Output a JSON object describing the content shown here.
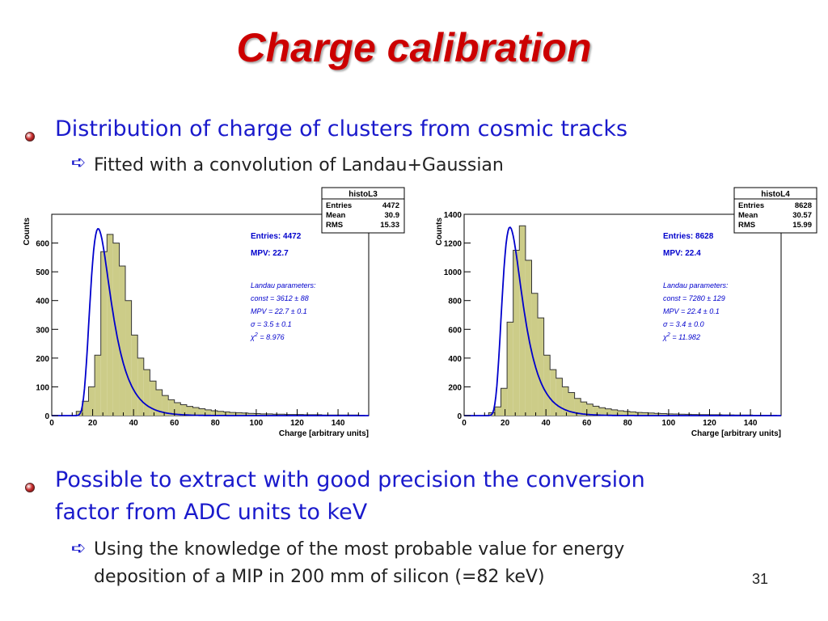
{
  "slide": {
    "title": "Charge calibration",
    "page_number": "31",
    "bullets": [
      {
        "text": "Distribution of charge of clusters from cosmic tracks",
        "sub": "Fitted with a convolution of Landau+Gaussian"
      },
      {
        "text": "Possible to extract with good precision the conversion factor from ADC units to keV",
        "text_line1": "Possible to extract with good precision the conversion",
        "text_line2": "factor from ADC units to keV",
        "sub_line1": "Using the knowledge of the most probable value for energy",
        "sub_line2": "deposition of a MIP in 200 mm of silicon (=82 keV)"
      }
    ]
  },
  "colors": {
    "title": "#cc0000",
    "bullet_text": "#1a1acc",
    "hist_fill": "#cccc88",
    "fit_line": "#0000cc",
    "annotation": "#0000cc"
  },
  "chart_data": [
    {
      "type": "bar",
      "name": "histoL3",
      "xlabel": "Charge  [arbitrary units]",
      "ylabel": "Counts",
      "xlim": [
        0,
        155
      ],
      "ylim": [
        0,
        700
      ],
      "xticks": [
        0,
        20,
        40,
        60,
        80,
        100,
        120,
        140
      ],
      "yticks": [
        0,
        100,
        200,
        300,
        400,
        500,
        600
      ],
      "bin_width": 3,
      "bin_start": 0,
      "values": [
        0,
        0,
        0,
        0,
        15,
        50,
        100,
        210,
        570,
        630,
        600,
        520,
        400,
        280,
        200,
        160,
        120,
        90,
        70,
        55,
        45,
        38,
        32,
        28,
        24,
        20,
        17,
        15,
        13,
        11,
        10,
        9,
        8,
        7,
        6,
        6,
        5,
        5,
        4,
        4,
        4,
        3,
        3,
        3,
        2,
        2,
        2,
        2,
        2,
        2,
        1
      ],
      "fit": {
        "name": "Landau+Gaussian",
        "mpv": 22.7,
        "sigma": 3.5,
        "peak": 650
      },
      "stats_box": {
        "title": "histoL3",
        "rows": [
          [
            "Entries",
            "4472"
          ],
          [
            "Mean",
            "30.9"
          ],
          [
            "RMS",
            "15.33"
          ]
        ]
      },
      "annotations": {
        "entries": "Entries: 4472",
        "mpv": "MPV:  22.7",
        "landau_header": "Landau parameters:",
        "const": "const = 3612 ± 88",
        "mpv_fit": "MPV = 22.7 ± 0.1",
        "sigma": "σ = 3.5 ± 0.1",
        "chi2": "χ",
        "chi2_val": " = 8.976"
      }
    },
    {
      "type": "bar",
      "name": "histoL4",
      "xlabel": "Charge  [arbitrary units]",
      "ylabel": "Counts",
      "xlim": [
        0,
        155
      ],
      "ylim": [
        0,
        1400
      ],
      "xticks": [
        0,
        20,
        40,
        60,
        80,
        100,
        120,
        140
      ],
      "yticks": [
        0,
        200,
        400,
        600,
        800,
        1000,
        1200,
        1400
      ],
      "bin_width": 3,
      "bin_start": 0,
      "values": [
        0,
        0,
        0,
        0,
        20,
        60,
        190,
        650,
        1150,
        1320,
        1080,
        850,
        680,
        420,
        320,
        260,
        200,
        160,
        120,
        95,
        80,
        65,
        55,
        47,
        40,
        34,
        30,
        26,
        22,
        20,
        18,
        16,
        14,
        12,
        11,
        10,
        9,
        8,
        7,
        7,
        6,
        6,
        5,
        5,
        4,
        4,
        4,
        3,
        3,
        3,
        2
      ],
      "fit": {
        "name": "Landau+Gaussian",
        "mpv": 22.4,
        "sigma": 3.4,
        "peak": 1310
      },
      "stats_box": {
        "title": "histoL4",
        "rows": [
          [
            "Entries",
            "8628"
          ],
          [
            "Mean",
            "30.57"
          ],
          [
            "RMS",
            "15.99"
          ]
        ]
      },
      "annotations": {
        "entries": "Entries: 8628",
        "mpv": "MPV:  22.4",
        "landau_header": "Landau parameters:",
        "const": "const = 7280 ± 129",
        "mpv_fit": "MPV = 22.4 ± 0.1",
        "sigma": "σ = 3.4 ± 0.0",
        "chi2": "χ",
        "chi2_val": " = 11.982"
      }
    }
  ]
}
